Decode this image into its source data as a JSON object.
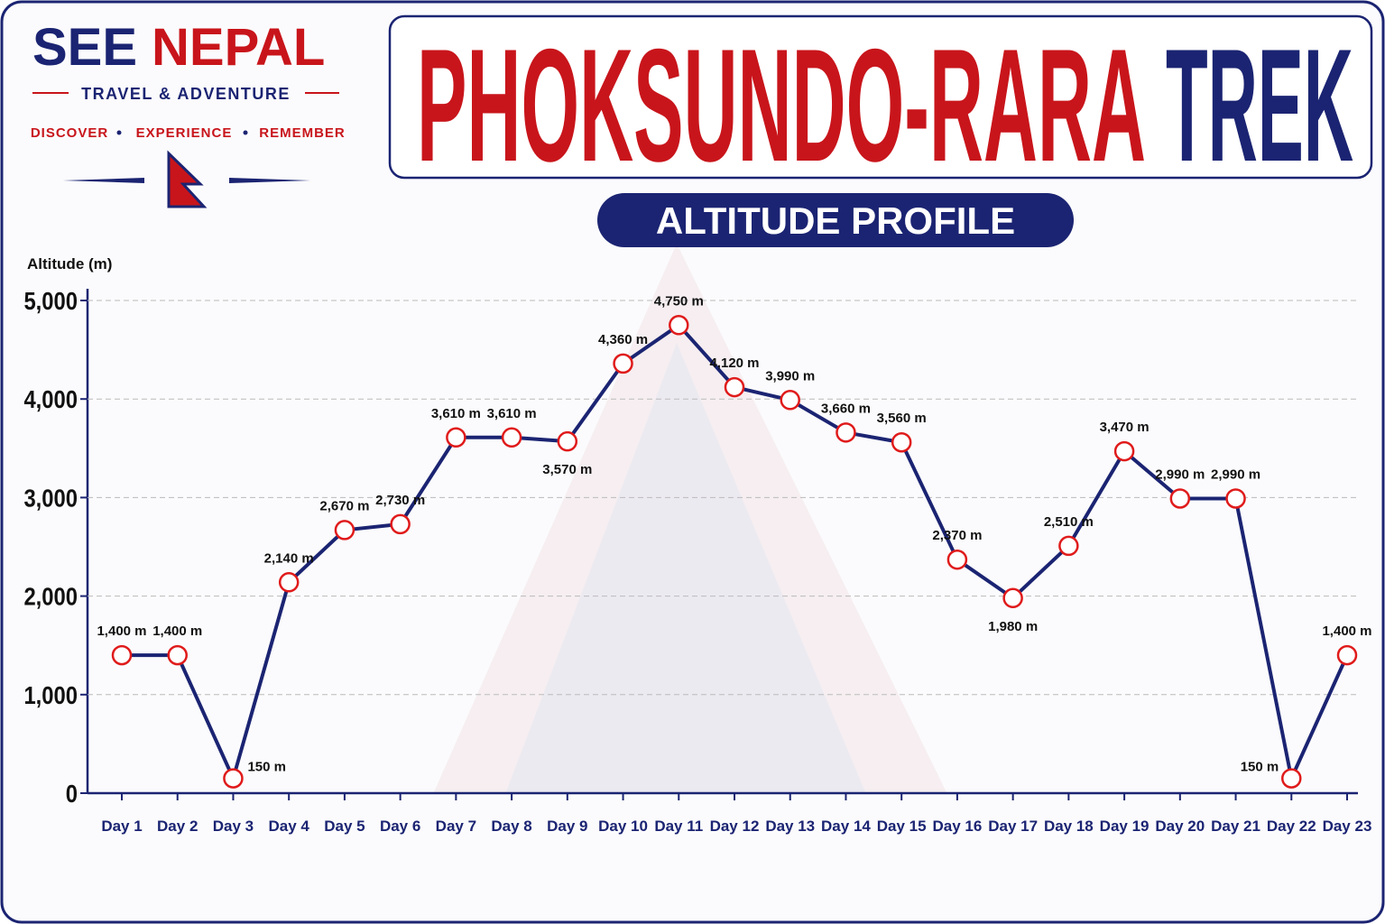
{
  "logo": {
    "name": [
      "SEE",
      "NEPAL"
    ],
    "tagline": "TRAVEL & ADVENTURE",
    "motto": [
      "DISCOVER",
      "EXPERIENCE",
      "REMEMBER"
    ]
  },
  "chart_data": {
    "type": "line",
    "title": [
      "PHOKSUNDO-RARA",
      "TREK"
    ],
    "subtitle": "ALTITUDE PROFILE",
    "y_label": "Altitude (m)",
    "categories": [
      "Day 1",
      "Day 2",
      "Day 3",
      "Day 4",
      "Day 5",
      "Day 6",
      "Day 7",
      "Day 8",
      "Day 9",
      "Day 10",
      "Day 11",
      "Day 12",
      "Day 13",
      "Day 14",
      "Day 15",
      "Day 16",
      "Day 17",
      "Day 18",
      "Day 19",
      "Day 20",
      "Day 21",
      "Day 22",
      "Day 23"
    ],
    "values": [
      1400,
      1400,
      150,
      2140,
      2670,
      2730,
      3610,
      3610,
      3570,
      4360,
      4750,
      4120,
      3990,
      3660,
      3560,
      2370,
      1980,
      2510,
      3470,
      2990,
      2990,
      150,
      1400
    ],
    "value_labels": [
      "1,400 m",
      "1,400 m",
      "150 m",
      "2,140 m",
      "2,670 m",
      "2,730 m",
      "3,610 m",
      "3,610 m",
      "3,570 m",
      "4,360 m",
      "4,750 m",
      "4,120 m",
      "3,990 m",
      "3,660 m",
      "3,560 m",
      "2,370 m",
      "1,980 m",
      "2,510 m",
      "3,470 m",
      "2,990 m",
      "2,990 m",
      "150 m",
      "1,400 m"
    ],
    "color": "#1b2472",
    "marker_color": "#e01b1b",
    "ylim": [
      0,
      5000
    ],
    "yticks": [
      0,
      {
        "value": 1000,
        "label": "1,000"
      },
      {
        "value": 2000,
        "label": "2,000"
      },
      {
        "value": 3000,
        "label": "3,000"
      },
      {
        "value": 4000,
        "label": "4,000"
      },
      {
        "value": 5000,
        "label": "5,000"
      }
    ],
    "grid": true
  }
}
